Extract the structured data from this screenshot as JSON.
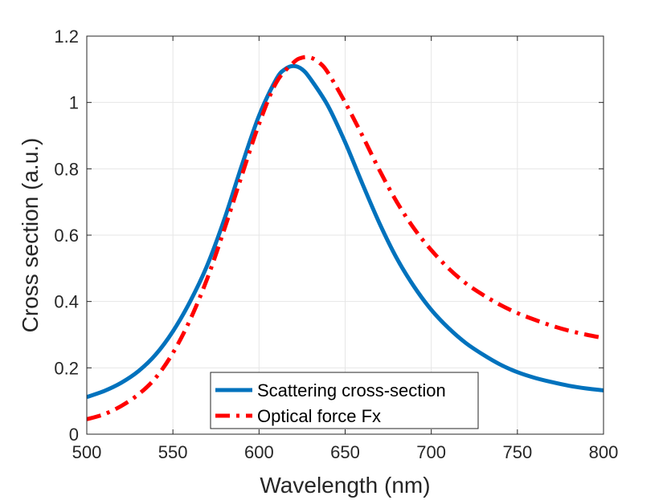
{
  "chart_data": {
    "type": "line",
    "title": "",
    "xlabel": "Wavelength (nm)",
    "ylabel": "Cross section (a.u.)",
    "xlim": [
      500,
      800
    ],
    "ylim": [
      0,
      1.2
    ],
    "xticks": [
      500,
      550,
      600,
      650,
      700,
      750,
      800
    ],
    "yticks": [
      0,
      0.2,
      0.4,
      0.6,
      0.8,
      1,
      1.2
    ],
    "xtick_labels": [
      "500",
      "550",
      "600",
      "650",
      "700",
      "750",
      "800"
    ],
    "ytick_labels": [
      "0",
      "0.2",
      "0.4",
      "0.6",
      "0.8",
      "1",
      "1.2"
    ],
    "grid": true,
    "legend_position": "bottom-center",
    "series": [
      {
        "name": "Scattering cross-section",
        "color": "#0072BD",
        "style": "solid",
        "x": [
          500,
          510,
          520,
          530,
          540,
          550,
          560,
          570,
          580,
          590,
          600,
          610,
          615,
          620,
          625,
          630,
          640,
          650,
          660,
          670,
          680,
          690,
          700,
          710,
          720,
          730,
          740,
          750,
          760,
          770,
          780,
          790,
          800
        ],
        "y": [
          0.112,
          0.13,
          0.155,
          0.19,
          0.24,
          0.31,
          0.4,
          0.51,
          0.65,
          0.81,
          0.96,
          1.07,
          1.1,
          1.11,
          1.1,
          1.07,
          0.99,
          0.88,
          0.755,
          0.635,
          0.53,
          0.445,
          0.375,
          0.32,
          0.275,
          0.24,
          0.21,
          0.187,
          0.17,
          0.157,
          0.146,
          0.138,
          0.132
        ]
      },
      {
        "name": "Optical force Fx",
        "color": "#FF0000",
        "style": "dashdot",
        "x": [
          500,
          510,
          520,
          530,
          540,
          550,
          560,
          570,
          580,
          590,
          600,
          610,
          620,
          625,
          630,
          635,
          640,
          650,
          660,
          670,
          680,
          690,
          700,
          710,
          720,
          730,
          740,
          750,
          760,
          770,
          780,
          790,
          800
        ],
        "y": [
          0.045,
          0.06,
          0.085,
          0.12,
          0.17,
          0.245,
          0.345,
          0.47,
          0.62,
          0.78,
          0.935,
          1.06,
          1.12,
          1.135,
          1.135,
          1.12,
          1.09,
          1.0,
          0.9,
          0.795,
          0.7,
          0.62,
          0.555,
          0.5,
          0.455,
          0.42,
          0.39,
          0.365,
          0.345,
          0.327,
          0.312,
          0.3,
          0.29
        ]
      }
    ]
  }
}
